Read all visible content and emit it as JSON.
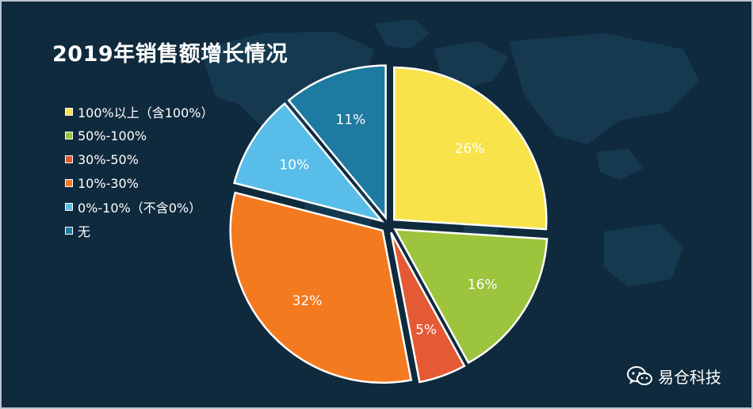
{
  "chart_data": {
    "type": "pie",
    "title": "2019年销售额增长情况",
    "categories": [
      "100%以上（含100%）",
      "50%-100%",
      "30%-50%",
      "10%-30%",
      "0%-10%（不含0%）",
      "无"
    ],
    "values": [
      26,
      16,
      5,
      32,
      10,
      11
    ],
    "value_labels": [
      "26%",
      "16%",
      "5%",
      "32%",
      "10%",
      "11%"
    ],
    "colors": [
      "#f8e34a",
      "#9cc43c",
      "#e45a35",
      "#f47a20",
      "#59bde9",
      "#1e7aa0"
    ],
    "legend": "left",
    "start_angle_deg": 0,
    "direction": "clockwise",
    "exploded": true
  },
  "colors": {
    "background": "#0f2a3d",
    "map": "#1c4761"
  },
  "watermark": {
    "text": "易仓科技",
    "icon": "wechat-icon"
  }
}
